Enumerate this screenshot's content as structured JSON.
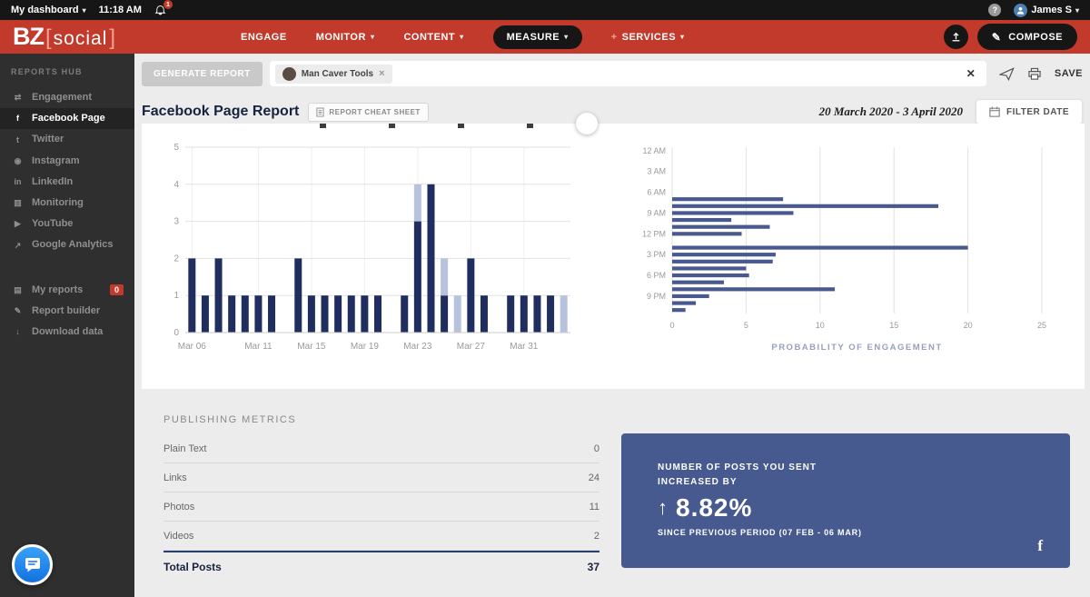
{
  "colors": {
    "brand_red": "#c23a2b",
    "topbar_black": "#161616",
    "sidebar_dark": "#2f2f2f",
    "bar_dark_navy": "#1f2e5e",
    "bar_light_blue": "#b7c2dc",
    "bar_steel_blue": "#47598f",
    "card_blue": "#475a90",
    "badge_red": "#c23a2b"
  },
  "ui": {
    "caret_down": "▾"
  },
  "topbar": {
    "dashboard_label": "My dashboard",
    "time": "11:18 AM",
    "notification_count": "1",
    "user_name": "James S"
  },
  "navbar": {
    "logo_primary": "BZ",
    "logo_bracket_open": "[",
    "logo_secondary": "social",
    "logo_bracket_close": "]",
    "items": [
      {
        "label": "ENGAGE",
        "caret": false,
        "active": false,
        "plus": false
      },
      {
        "label": "MONITOR",
        "caret": true,
        "active": false,
        "plus": false
      },
      {
        "label": "CONTENT",
        "caret": true,
        "active": false,
        "plus": false
      },
      {
        "label": "MEASURE",
        "caret": true,
        "active": true,
        "plus": false
      },
      {
        "label": "SERVICES",
        "caret": true,
        "active": false,
        "plus": true
      }
    ],
    "compose_label": "COMPOSE"
  },
  "sidebar": {
    "section_title": "REPORTS HUB",
    "items": [
      {
        "label": "Engagement",
        "icon": "engagement-icon",
        "glyph": "⇄",
        "active": false
      },
      {
        "label": "Facebook Page",
        "icon": "facebook-page-icon",
        "glyph": "f",
        "active": true
      },
      {
        "label": "Twitter",
        "icon": "twitter-icon",
        "glyph": "t",
        "active": false
      },
      {
        "label": "Instagram",
        "icon": "instagram-icon",
        "glyph": "◉",
        "active": false
      },
      {
        "label": "LinkedIn",
        "icon": "linkedin-icon",
        "glyph": "in",
        "active": false
      },
      {
        "label": "Monitoring",
        "icon": "monitoring-icon",
        "glyph": "▥",
        "active": false
      },
      {
        "label": "YouTube",
        "icon": "youtube-icon",
        "glyph": "▶",
        "active": false
      },
      {
        "label": "Google Analytics",
        "icon": "google-analytics-icon",
        "glyph": "↗",
        "active": false
      }
    ],
    "tools": [
      {
        "label": "My reports",
        "icon": "my-reports-icon",
        "glyph": "▤",
        "badge": "0"
      },
      {
        "label": "Report builder",
        "icon": "report-builder-icon",
        "glyph": "✎",
        "badge": null
      },
      {
        "label": "Download data",
        "icon": "download-data-icon",
        "glyph": "↓",
        "badge": null
      }
    ]
  },
  "toolbar": {
    "generate_report_label": "GENERATE REPORT",
    "tag_chip_label": "Man Caver Tools",
    "tag_chip_close": "×",
    "clear_all_label": "✕",
    "save_label": "SAVE"
  },
  "page": {
    "title": "Facebook Page Report",
    "cheat_sheet_label": "REPORT CHEAT SHEET",
    "date_range": "20 March 2020 - 3 April 2020",
    "filter_date_label": "FILTER DATE"
  },
  "metrics": {
    "section_title": "PUBLISHING METRICS",
    "rows": [
      {
        "label": "Plain Text",
        "value": "0"
      },
      {
        "label": "Links",
        "value": "24"
      },
      {
        "label": "Photos",
        "value": "11"
      },
      {
        "label": "Videos",
        "value": "2"
      }
    ],
    "total": {
      "label": "Total Posts",
      "value": "37"
    }
  },
  "highlight_card": {
    "title_line1": "NUMBER OF POSTS YOU SENT",
    "title_line2": "INCREASED BY",
    "arrow": "↑",
    "value": "8.82%",
    "subtitle": "SINCE PREVIOUS PERIOD (07 FEB - 06 MAR)",
    "fb_glyph": "f",
    "bg_color": "#475a90"
  },
  "chart_data": [
    {
      "type": "bar",
      "stacked": true,
      "x": [
        "Mar 06",
        "Mar 07",
        "Mar 08",
        "Mar 09",
        "Mar 10",
        "Mar 11",
        "Mar 12",
        "Mar 13",
        "Mar 14",
        "Mar 15",
        "Mar 16",
        "Mar 17",
        "Mar 18",
        "Mar 19",
        "Mar 20",
        "Mar 21",
        "Mar 22",
        "Mar 23",
        "Mar 24",
        "Mar 25",
        "Mar 26",
        "Mar 27",
        "Mar 28",
        "Mar 29",
        "Mar 30",
        "Mar 31",
        "Apr 01",
        "Apr 02",
        "Apr 03"
      ],
      "series": [
        {
          "name": "posts-dark",
          "color": "#1f2e5e",
          "values": [
            2,
            1,
            2,
            1,
            1,
            1,
            1,
            0,
            2,
            1,
            1,
            1,
            1,
            1,
            1,
            0,
            1,
            3,
            4,
            1,
            0,
            2,
            1,
            0,
            1,
            1,
            1,
            1,
            0
          ]
        },
        {
          "name": "posts-light",
          "color": "#b7c2dc",
          "values": [
            0,
            0,
            0,
            0,
            0,
            0,
            0,
            0,
            0,
            0,
            0,
            0,
            0,
            0,
            0,
            0,
            0,
            1,
            0,
            1,
            1,
            0,
            0,
            0,
            0,
            0,
            0,
            0,
            1
          ]
        }
      ],
      "ylim": [
        0,
        5
      ],
      "yticks": [
        0,
        1,
        2,
        3,
        4,
        5
      ],
      "xticks": {
        "indices": [
          0,
          5,
          9,
          13,
          17,
          21,
          25
        ],
        "labels": [
          "Mar 06",
          "Mar 11",
          "Mar 15",
          "Mar 19",
          "Mar 23",
          "Mar 27",
          "Mar 31"
        ]
      },
      "grid": true,
      "title": ""
    },
    {
      "type": "horizontal-bar",
      "categories": [
        "12 AM",
        "1 AM",
        "2 AM",
        "3 AM",
        "4 AM",
        "5 AM",
        "6 AM",
        "7 AM",
        "8 AM",
        "9 AM",
        "10 AM",
        "11 AM",
        "12 PM",
        "1 PM",
        "2 PM",
        "3 PM",
        "4 PM",
        "5 PM",
        "6 PM",
        "7 PM",
        "8 PM",
        "9 PM",
        "10 PM",
        "11 PM"
      ],
      "values": [
        0,
        0,
        0,
        0,
        0,
        0,
        0,
        7.5,
        18,
        8.2,
        4,
        6.6,
        4.7,
        0,
        20,
        7,
        6.8,
        5,
        5.2,
        3.5,
        11,
        2.5,
        1.6,
        0.9
      ],
      "ytick_labels": [
        "12 AM",
        "3 AM",
        "6 AM",
        "9 AM",
        "12 PM",
        "3 PM",
        "6 PM",
        "9 PM"
      ],
      "xlim": [
        0,
        25
      ],
      "xticks": [
        0,
        5,
        10,
        15,
        20,
        25
      ],
      "xlabel": "PROBABILITY OF ENGAGEMENT",
      "bar_color": "#47598f",
      "grid": true
    }
  ]
}
